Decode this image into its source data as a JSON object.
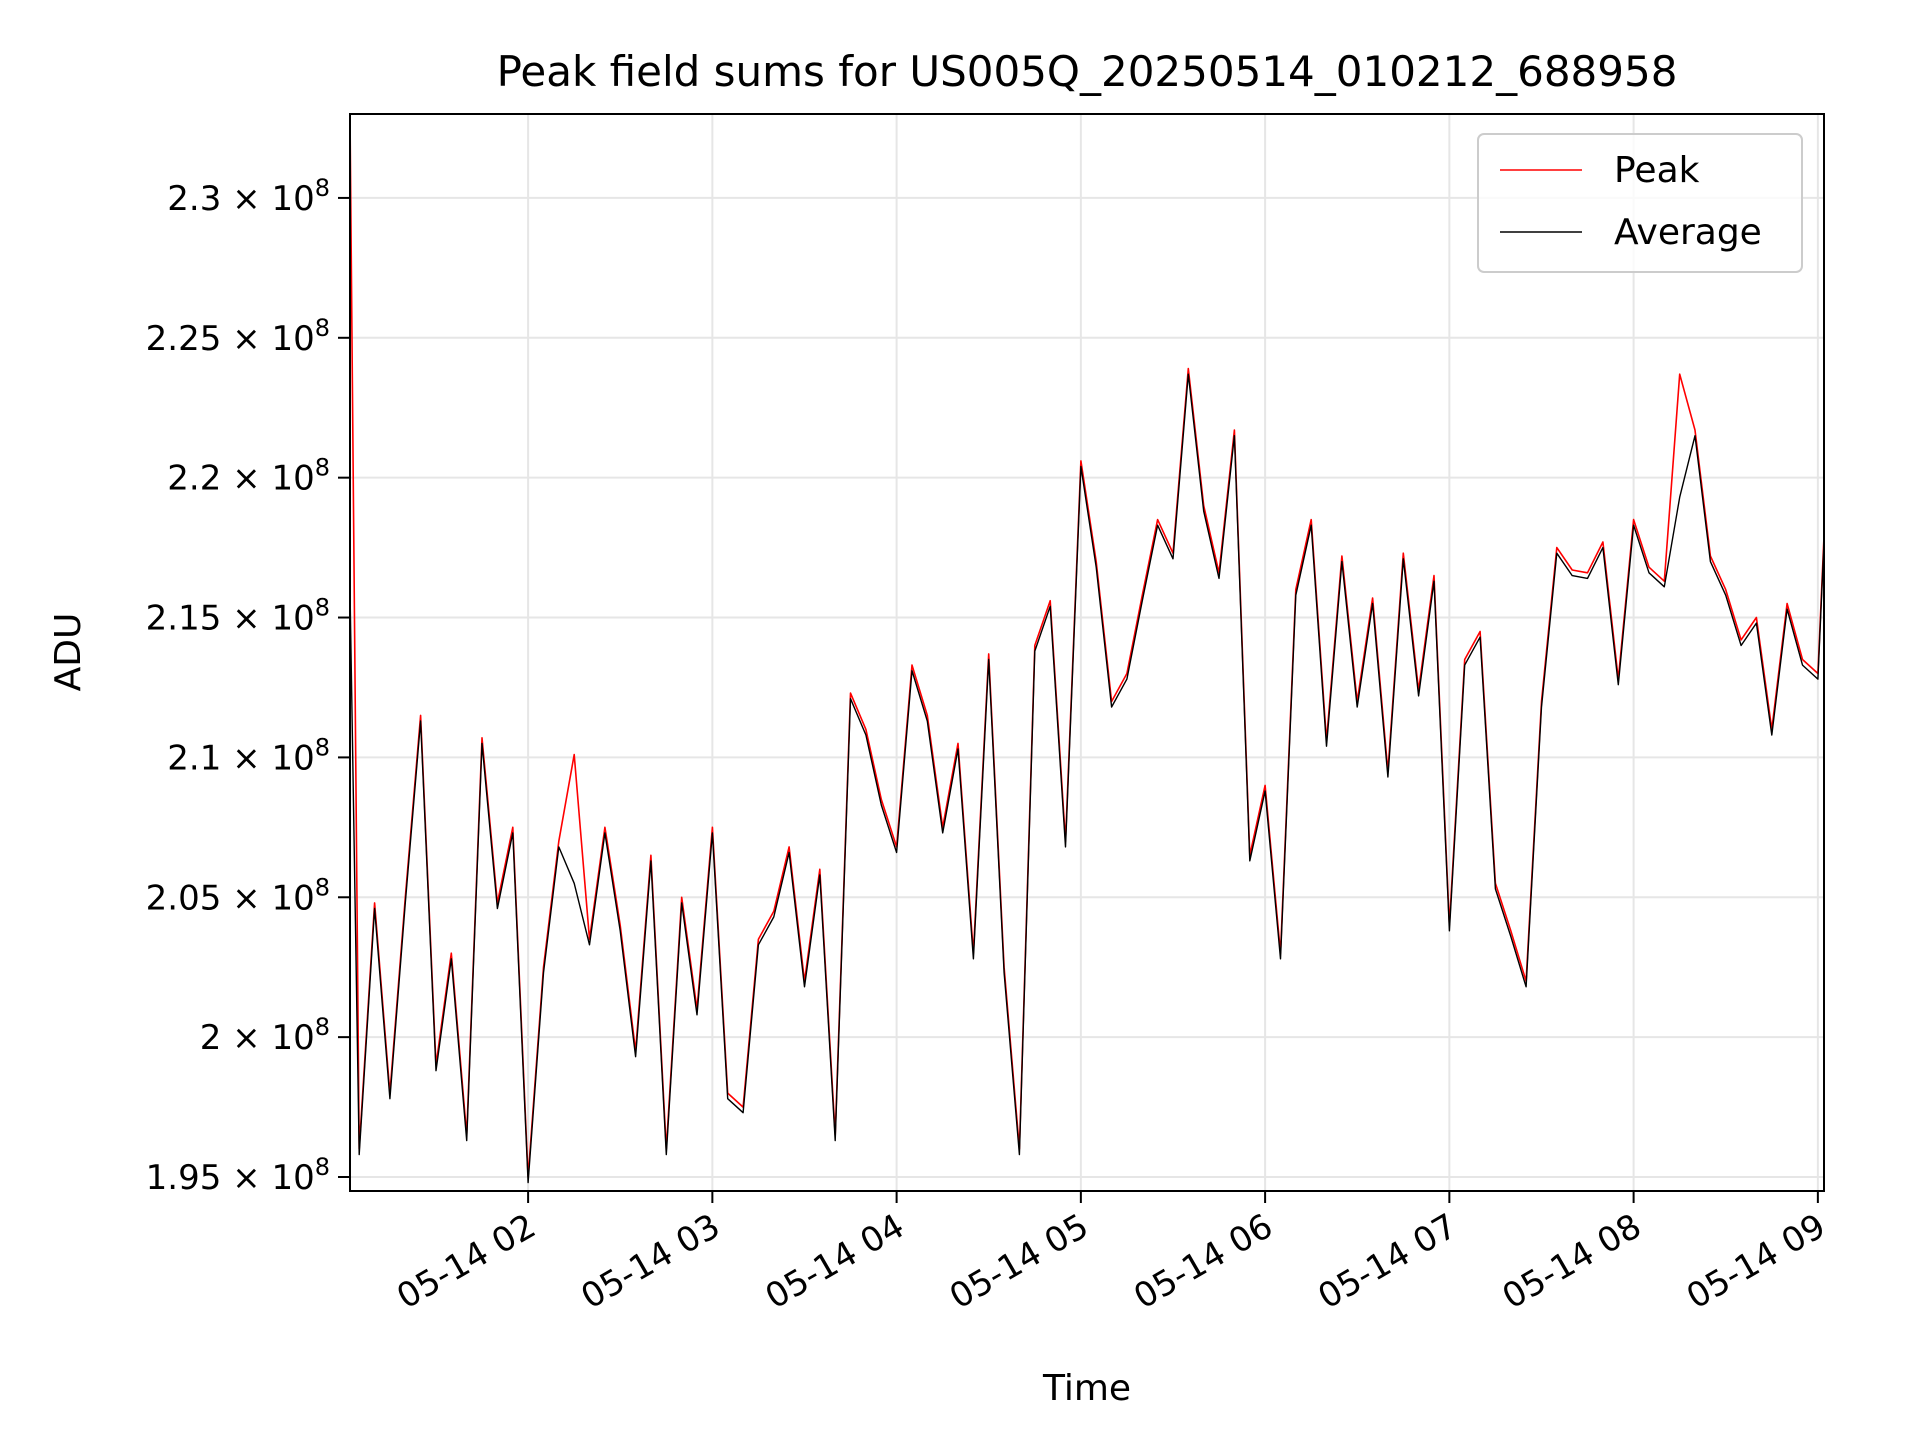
{
  "chart_data": {
    "type": "line",
    "title": "Peak field sums for US005Q_20250514_010212_688958",
    "xlabel": "Time",
    "ylabel": "ADU",
    "x_range": [
      "2025-05-14 01:02",
      "2025-05-14 09:02"
    ],
    "ylim": [
      194500000,
      233000000
    ],
    "grid": true,
    "legend_position": "top-right",
    "x_ticks": [
      {
        "time": "2025-05-14 02:00",
        "label": "05-14 02"
      },
      {
        "time": "2025-05-14 03:00",
        "label": "05-14 03"
      },
      {
        "time": "2025-05-14 04:00",
        "label": "05-14 04"
      },
      {
        "time": "2025-05-14 05:00",
        "label": "05-14 05"
      },
      {
        "time": "2025-05-14 06:00",
        "label": "05-14 06"
      },
      {
        "time": "2025-05-14 07:00",
        "label": "05-14 07"
      },
      {
        "time": "2025-05-14 08:00",
        "label": "05-14 08"
      },
      {
        "time": "2025-05-14 09:00",
        "label": "05-14 09"
      }
    ],
    "y_ticks": [
      {
        "value": 195000000,
        "mantissa": "1.95",
        "exponent": "8"
      },
      {
        "value": 200000000,
        "mantissa": "2",
        "exponent": "8"
      },
      {
        "value": 205000000,
        "mantissa": "2.05",
        "exponent": "8"
      },
      {
        "value": 210000000,
        "mantissa": "2.1",
        "exponent": "8"
      },
      {
        "value": 215000000,
        "mantissa": "2.15",
        "exponent": "8"
      },
      {
        "value": 220000000,
        "mantissa": "2.2",
        "exponent": "8"
      },
      {
        "value": 225000000,
        "mantissa": "2.25",
        "exponent": "8"
      },
      {
        "value": 230000000,
        "mantissa": "2.3",
        "exponent": "8"
      }
    ],
    "series": [
      {
        "name": "Peak",
        "color": "#ff0000",
        "x": [
          "2025-05-14 01:02",
          "2025-05-14 01:05",
          "2025-05-14 01:10",
          "2025-05-14 01:15",
          "2025-05-14 01:20",
          "2025-05-14 01:25",
          "2025-05-14 01:30",
          "2025-05-14 01:35",
          "2025-05-14 01:40",
          "2025-05-14 01:45",
          "2025-05-14 01:50",
          "2025-05-14 01:55",
          "2025-05-14 02:00",
          "2025-05-14 02:05",
          "2025-05-14 02:10",
          "2025-05-14 02:15",
          "2025-05-14 02:20",
          "2025-05-14 02:25",
          "2025-05-14 02:30",
          "2025-05-14 02:35",
          "2025-05-14 02:40",
          "2025-05-14 02:45",
          "2025-05-14 02:50",
          "2025-05-14 02:55",
          "2025-05-14 03:00",
          "2025-05-14 03:05",
          "2025-05-14 03:10",
          "2025-05-14 03:15",
          "2025-05-14 03:20",
          "2025-05-14 03:25",
          "2025-05-14 03:30",
          "2025-05-14 03:35",
          "2025-05-14 03:40",
          "2025-05-14 03:45",
          "2025-05-14 03:50",
          "2025-05-14 03:55",
          "2025-05-14 04:00",
          "2025-05-14 04:05",
          "2025-05-14 04:10",
          "2025-05-14 04:15",
          "2025-05-14 04:20",
          "2025-05-14 04:25",
          "2025-05-14 04:30",
          "2025-05-14 04:35",
          "2025-05-14 04:40",
          "2025-05-14 04:45",
          "2025-05-14 04:50",
          "2025-05-14 04:55",
          "2025-05-14 05:00",
          "2025-05-14 05:05",
          "2025-05-14 05:10",
          "2025-05-14 05:15",
          "2025-05-14 05:20",
          "2025-05-14 05:25",
          "2025-05-14 05:30",
          "2025-05-14 05:35",
          "2025-05-14 05:40",
          "2025-05-14 05:45",
          "2025-05-14 05:50",
          "2025-05-14 05:55",
          "2025-05-14 06:00",
          "2025-05-14 06:05",
          "2025-05-14 06:10",
          "2025-05-14 06:15",
          "2025-05-14 06:20",
          "2025-05-14 06:25",
          "2025-05-14 06:30",
          "2025-05-14 06:35",
          "2025-05-14 06:40",
          "2025-05-14 06:45",
          "2025-05-14 06:50",
          "2025-05-14 06:55",
          "2025-05-14 07:00",
          "2025-05-14 07:05",
          "2025-05-14 07:10",
          "2025-05-14 07:15",
          "2025-05-14 07:20",
          "2025-05-14 07:25",
          "2025-05-14 07:30",
          "2025-05-14 07:35",
          "2025-05-14 07:40",
          "2025-05-14 07:45",
          "2025-05-14 07:50",
          "2025-05-14 07:55",
          "2025-05-14 08:00",
          "2025-05-14 08:05",
          "2025-05-14 08:10",
          "2025-05-14 08:15",
          "2025-05-14 08:20",
          "2025-05-14 08:25",
          "2025-05-14 08:30",
          "2025-05-14 08:35",
          "2025-05-14 08:40",
          "2025-05-14 08:45",
          "2025-05-14 08:50",
          "2025-05-14 08:55",
          "2025-05-14 09:00",
          "2025-05-14 09:02"
        ],
        "values": [
          233000000,
          196000000,
          204800000,
          198000000,
          205000000,
          211500000,
          199000000,
          203000000,
          196500000,
          210700000,
          204800000,
          207500000,
          195000000,
          202500000,
          207000000,
          210100000,
          203500000,
          207500000,
          204000000,
          199500000,
          206500000,
          196000000,
          205000000,
          201000000,
          207500000,
          198000000,
          197500000,
          203500000,
          204500000,
          206800000,
          202000000,
          206000000,
          196500000,
          212300000,
          211000000,
          208500000,
          206800000,
          213300000,
          211500000,
          207500000,
          210500000,
          203000000,
          213700000,
          202500000,
          196000000,
          214000000,
          215600000,
          207000000,
          220600000,
          217000000,
          212000000,
          213000000,
          215800000,
          218500000,
          217300000,
          223900000,
          219000000,
          216600000,
          221700000,
          206500000,
          209000000,
          203000000,
          216000000,
          218500000,
          210600000,
          217200000,
          212000000,
          215700000,
          209500000,
          217300000,
          212400000,
          216500000,
          204000000,
          213500000,
          214500000,
          205500000,
          203800000,
          202000000,
          212000000,
          217500000,
          216700000,
          216600000,
          217700000,
          212800000,
          218500000,
          216800000,
          216300000,
          223700000,
          221700000,
          217200000,
          216000000,
          214200000,
          215000000,
          211000000,
          215500000,
          213500000,
          213000000,
          217900000
        ]
      },
      {
        "name": "Average",
        "color": "#000000",
        "x": [
          "2025-05-14 01:02",
          "2025-05-14 01:05",
          "2025-05-14 01:10",
          "2025-05-14 01:15",
          "2025-05-14 01:20",
          "2025-05-14 01:25",
          "2025-05-14 01:30",
          "2025-05-14 01:35",
          "2025-05-14 01:40",
          "2025-05-14 01:45",
          "2025-05-14 01:50",
          "2025-05-14 01:55",
          "2025-05-14 02:00",
          "2025-05-14 02:05",
          "2025-05-14 02:10",
          "2025-05-14 02:15",
          "2025-05-14 02:20",
          "2025-05-14 02:25",
          "2025-05-14 02:30",
          "2025-05-14 02:35",
          "2025-05-14 02:40",
          "2025-05-14 02:45",
          "2025-05-14 02:50",
          "2025-05-14 02:55",
          "2025-05-14 03:00",
          "2025-05-14 03:05",
          "2025-05-14 03:10",
          "2025-05-14 03:15",
          "2025-05-14 03:20",
          "2025-05-14 03:25",
          "2025-05-14 03:30",
          "2025-05-14 03:35",
          "2025-05-14 03:40",
          "2025-05-14 03:45",
          "2025-05-14 03:50",
          "2025-05-14 03:55",
          "2025-05-14 04:00",
          "2025-05-14 04:05",
          "2025-05-14 04:10",
          "2025-05-14 04:15",
          "2025-05-14 04:20",
          "2025-05-14 04:25",
          "2025-05-14 04:30",
          "2025-05-14 04:35",
          "2025-05-14 04:40",
          "2025-05-14 04:45",
          "2025-05-14 04:50",
          "2025-05-14 04:55",
          "2025-05-14 05:00",
          "2025-05-14 05:05",
          "2025-05-14 05:10",
          "2025-05-14 05:15",
          "2025-05-14 05:20",
          "2025-05-14 05:25",
          "2025-05-14 05:30",
          "2025-05-14 05:35",
          "2025-05-14 05:40",
          "2025-05-14 05:45",
          "2025-05-14 05:50",
          "2025-05-14 05:55",
          "2025-05-14 06:00",
          "2025-05-14 06:05",
          "2025-05-14 06:10",
          "2025-05-14 06:15",
          "2025-05-14 06:20",
          "2025-05-14 06:25",
          "2025-05-14 06:30",
          "2025-05-14 06:35",
          "2025-05-14 06:40",
          "2025-05-14 06:45",
          "2025-05-14 06:50",
          "2025-05-14 06:55",
          "2025-05-14 07:00",
          "2025-05-14 07:05",
          "2025-05-14 07:10",
          "2025-05-14 07:15",
          "2025-05-14 07:20",
          "2025-05-14 07:25",
          "2025-05-14 07:30",
          "2025-05-14 07:35",
          "2025-05-14 07:40",
          "2025-05-14 07:45",
          "2025-05-14 07:50",
          "2025-05-14 07:55",
          "2025-05-14 08:00",
          "2025-05-14 08:05",
          "2025-05-14 08:10",
          "2025-05-14 08:15",
          "2025-05-14 08:20",
          "2025-05-14 08:25",
          "2025-05-14 08:30",
          "2025-05-14 08:35",
          "2025-05-14 08:40",
          "2025-05-14 08:45",
          "2025-05-14 08:50",
          "2025-05-14 08:55",
          "2025-05-14 09:00",
          "2025-05-14 09:02"
        ],
        "values": [
          216000000,
          195800000,
          204600000,
          197800000,
          204800000,
          211300000,
          198800000,
          202800000,
          196300000,
          210500000,
          204600000,
          207300000,
          194800000,
          202300000,
          206800000,
          205500000,
          203300000,
          207300000,
          203800000,
          199300000,
          206300000,
          195800000,
          204800000,
          200800000,
          207300000,
          197800000,
          197300000,
          203300000,
          204300000,
          206600000,
          201800000,
          205800000,
          196300000,
          212100000,
          210800000,
          208300000,
          206600000,
          213100000,
          211300000,
          207300000,
          210300000,
          202800000,
          213500000,
          202300000,
          195800000,
          213800000,
          215400000,
          206800000,
          220400000,
          216800000,
          211800000,
          212800000,
          215600000,
          218300000,
          217100000,
          223700000,
          218800000,
          216400000,
          221500000,
          206300000,
          208800000,
          202800000,
          215800000,
          218300000,
          210400000,
          217000000,
          211800000,
          215500000,
          209300000,
          217100000,
          212200000,
          216300000,
          203800000,
          213300000,
          214300000,
          205300000,
          203600000,
          201800000,
          211800000,
          217300000,
          216500000,
          216400000,
          217500000,
          212600000,
          218300000,
          216600000,
          216100000,
          219300000,
          221500000,
          217000000,
          215800000,
          214000000,
          214800000,
          210800000,
          215300000,
          213300000,
          212800000,
          217700000
        ]
      }
    ]
  }
}
